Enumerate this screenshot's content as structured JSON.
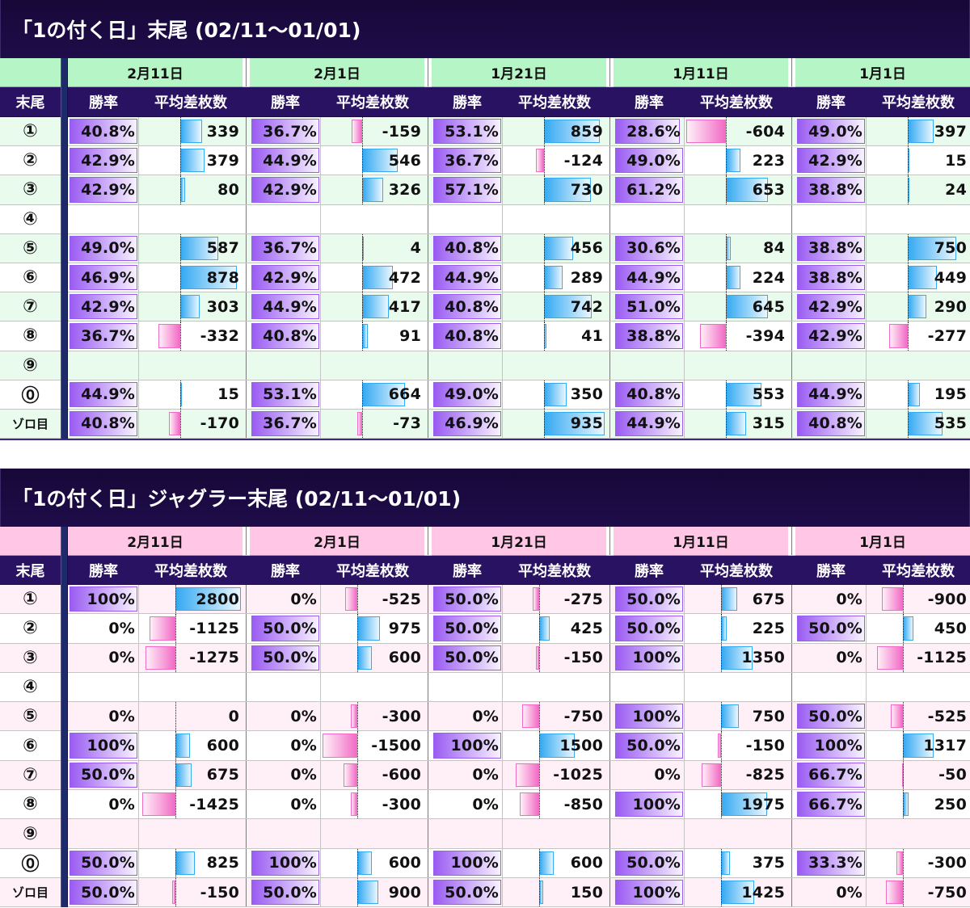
{
  "colors": {
    "title_bg": "#1f0c4a",
    "header_bg": "#2a1262",
    "divider": "#1e2a6a",
    "win_rate_bar": "#9a5cf2",
    "plus_bar": "#35aaf2",
    "minus_bar": "#f26cc6"
  },
  "chart_data": [
    {
      "type": "table",
      "title": "「1の付く日」末尾 (02/11〜01/01)",
      "tail_header": "末尾",
      "win_rate_header": "勝率",
      "diff_header": "平均差枚数",
      "colors": {
        "date_row": "#b5f5c6",
        "alt_row": "#e9fbec"
      },
      "row_labels": [
        "①",
        "②",
        "③",
        "④",
        "⑤",
        "⑥",
        "⑦",
        "⑧",
        "⑨",
        "⓪",
        "ゾロ目"
      ],
      "days": [
        {
          "date": "2月11日",
          "win_rate": [
            "40.8%",
            "42.9%",
            "42.9%",
            null,
            "49.0%",
            "46.9%",
            "42.9%",
            "36.7%",
            null,
            "44.9%",
            "40.8%"
          ],
          "diff": [
            339,
            379,
            80,
            null,
            587,
            878,
            303,
            -332,
            null,
            15,
            -170
          ]
        },
        {
          "date": "2月1日",
          "win_rate": [
            "36.7%",
            "44.9%",
            "42.9%",
            null,
            "36.7%",
            "42.9%",
            "44.9%",
            "40.8%",
            null,
            "53.1%",
            "36.7%"
          ],
          "diff": [
            -159,
            546,
            326,
            null,
            4,
            472,
            417,
            91,
            null,
            664,
            -73
          ]
        },
        {
          "date": "1月21日",
          "win_rate": [
            "53.1%",
            "36.7%",
            "57.1%",
            null,
            "40.8%",
            "44.9%",
            "40.8%",
            "40.8%",
            null,
            "49.0%",
            "46.9%"
          ],
          "diff": [
            859,
            -124,
            730,
            null,
            456,
            289,
            742,
            41,
            null,
            350,
            935
          ]
        },
        {
          "date": "1月11日",
          "win_rate": [
            "28.6%",
            "49.0%",
            "61.2%",
            null,
            "30.6%",
            "44.9%",
            "51.0%",
            "38.8%",
            null,
            "40.8%",
            "44.9%"
          ],
          "diff": [
            -604,
            223,
            653,
            null,
            84,
            224,
            645,
            -394,
            null,
            553,
            315
          ]
        },
        {
          "date": "1月1日",
          "win_rate": [
            "49.0%",
            "42.9%",
            "38.8%",
            null,
            "38.8%",
            "38.8%",
            "42.9%",
            "42.9%",
            null,
            "44.9%",
            "40.8%"
          ],
          "diff": [
            397,
            15,
            24,
            null,
            750,
            449,
            290,
            -277,
            null,
            195,
            535
          ]
        }
      ]
    },
    {
      "type": "table",
      "title": "「1の付く日」ジャグラー末尾 (02/11〜01/01)",
      "tail_header": "末尾",
      "win_rate_header": "勝率",
      "diff_header": "平均差枚数",
      "colors": {
        "date_row": "#ffc6e6",
        "alt_row": "#fff0f8"
      },
      "row_labels": [
        "①",
        "②",
        "③",
        "④",
        "⑤",
        "⑥",
        "⑦",
        "⑧",
        "⑨",
        "⓪",
        "ゾロ目"
      ],
      "days": [
        {
          "date": "2月11日",
          "win_rate": [
            "100%",
            "0%",
            "0%",
            null,
            "0%",
            "100%",
            "50.0%",
            "0%",
            null,
            "50.0%",
            "50.0%"
          ],
          "diff": [
            2800,
            -1125,
            -1275,
            null,
            0,
            600,
            675,
            -1425,
            null,
            825,
            -150
          ]
        },
        {
          "date": "2月1日",
          "win_rate": [
            "0%",
            "50.0%",
            "50.0%",
            null,
            "0%",
            "0%",
            "0%",
            "0%",
            null,
            "100%",
            "50.0%"
          ],
          "diff": [
            -525,
            975,
            600,
            null,
            -300,
            -1500,
            -600,
            -300,
            null,
            600,
            900
          ]
        },
        {
          "date": "1月21日",
          "win_rate": [
            "50.0%",
            "50.0%",
            "50.0%",
            null,
            "0%",
            "100%",
            "0%",
            "0%",
            null,
            "100%",
            "50.0%"
          ],
          "diff": [
            -275,
            425,
            -150,
            null,
            -750,
            1500,
            -1025,
            -850,
            null,
            600,
            150
          ]
        },
        {
          "date": "1月11日",
          "win_rate": [
            "50.0%",
            "50.0%",
            "100%",
            null,
            "100%",
            "50.0%",
            "0%",
            "100%",
            null,
            "50.0%",
            "100%"
          ],
          "diff": [
            675,
            225,
            1350,
            null,
            750,
            -150,
            -825,
            1975,
            null,
            375,
            1425
          ]
        },
        {
          "date": "1月1日",
          "win_rate": [
            "0%",
            "50.0%",
            "0%",
            null,
            "50.0%",
            "100%",
            "66.7%",
            "66.7%",
            null,
            "33.3%",
            "0%"
          ],
          "diff": [
            -900,
            450,
            -1125,
            null,
            -525,
            1317,
            -50,
            250,
            null,
            -300,
            -750
          ]
        }
      ]
    }
  ]
}
